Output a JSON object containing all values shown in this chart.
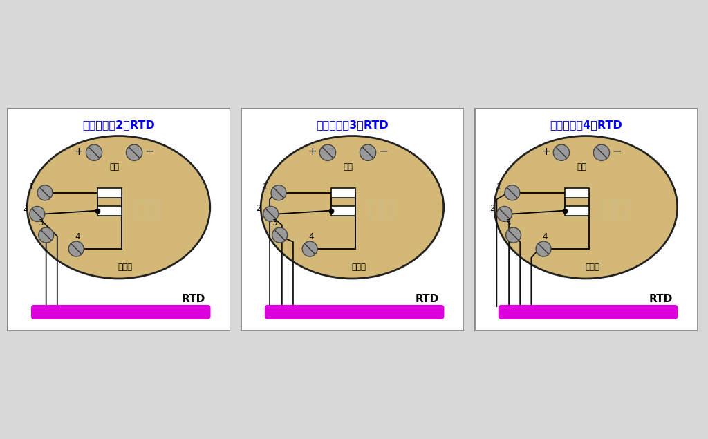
{
  "bg_color": "#d8d8d8",
  "panel_bg": "#ffffff",
  "panel_border": "#888888",
  "titles": [
    "变送器连接2线RTD",
    "变送器连接3线RTD",
    "变送器连接4线RTD"
  ],
  "title_color": "#0000ee",
  "ellipse_fill": "#d4b878",
  "ellipse_edge": "#222222",
  "screw_fill": "#999999",
  "screw_edge": "#444444",
  "wire_color": "#111111",
  "resistor_fill": "#ffffff",
  "resistor_edge": "#111111",
  "rtd_bar_color": "#dd00dd",
  "watermark_color": "#c8bc90",
  "num_wires": [
    2,
    3,
    4
  ],
  "transmitter_label": "变送器",
  "power_label": "电源",
  "rtd_label": "RTD"
}
